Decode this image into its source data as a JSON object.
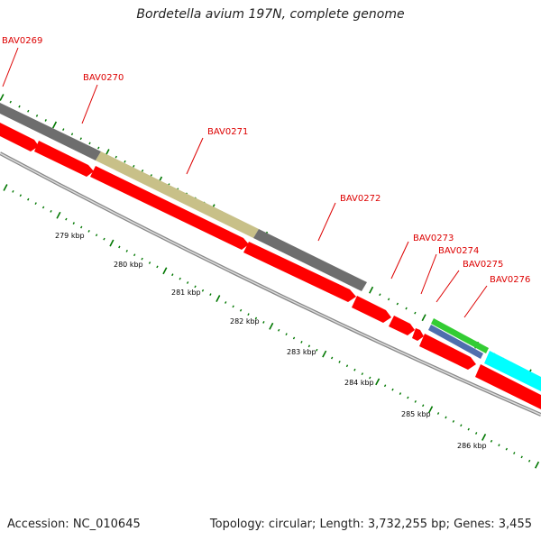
{
  "title": "Bordetella avium 197N, complete genome",
  "footer": {
    "accession": "Accession: NC_010645",
    "summary": "Topology: circular; Length: 3,732,255 bp; Genes: 3,455"
  },
  "colors": {
    "cds": "#ff0000",
    "gray_feature": "#6e6e6e",
    "olive_feature": "#c8c088",
    "green_feature": "#33cc33",
    "blue_feature": "#4f6fae",
    "cyan_feature": "#00ffff",
    "backbone": "#888888",
    "tick": "#007700",
    "label": "#dd0000"
  },
  "genes": [
    {
      "label": "BAV0269"
    },
    {
      "label": "BAV0270"
    },
    {
      "label": "BAV0271"
    },
    {
      "label": "BAV0272"
    },
    {
      "label": "BAV0273"
    },
    {
      "label": "BAV0274"
    },
    {
      "label": "BAV0275"
    },
    {
      "label": "BAV0276"
    }
  ],
  "kbp_ticks": [
    {
      "label": "279 kbp"
    },
    {
      "label": "280 kbp"
    },
    {
      "label": "281 kbp"
    },
    {
      "label": "282 kbp"
    },
    {
      "label": "283 kbp"
    },
    {
      "label": "284 kbp"
    },
    {
      "label": "285 kbp"
    },
    {
      "label": "286 kbp"
    }
  ]
}
